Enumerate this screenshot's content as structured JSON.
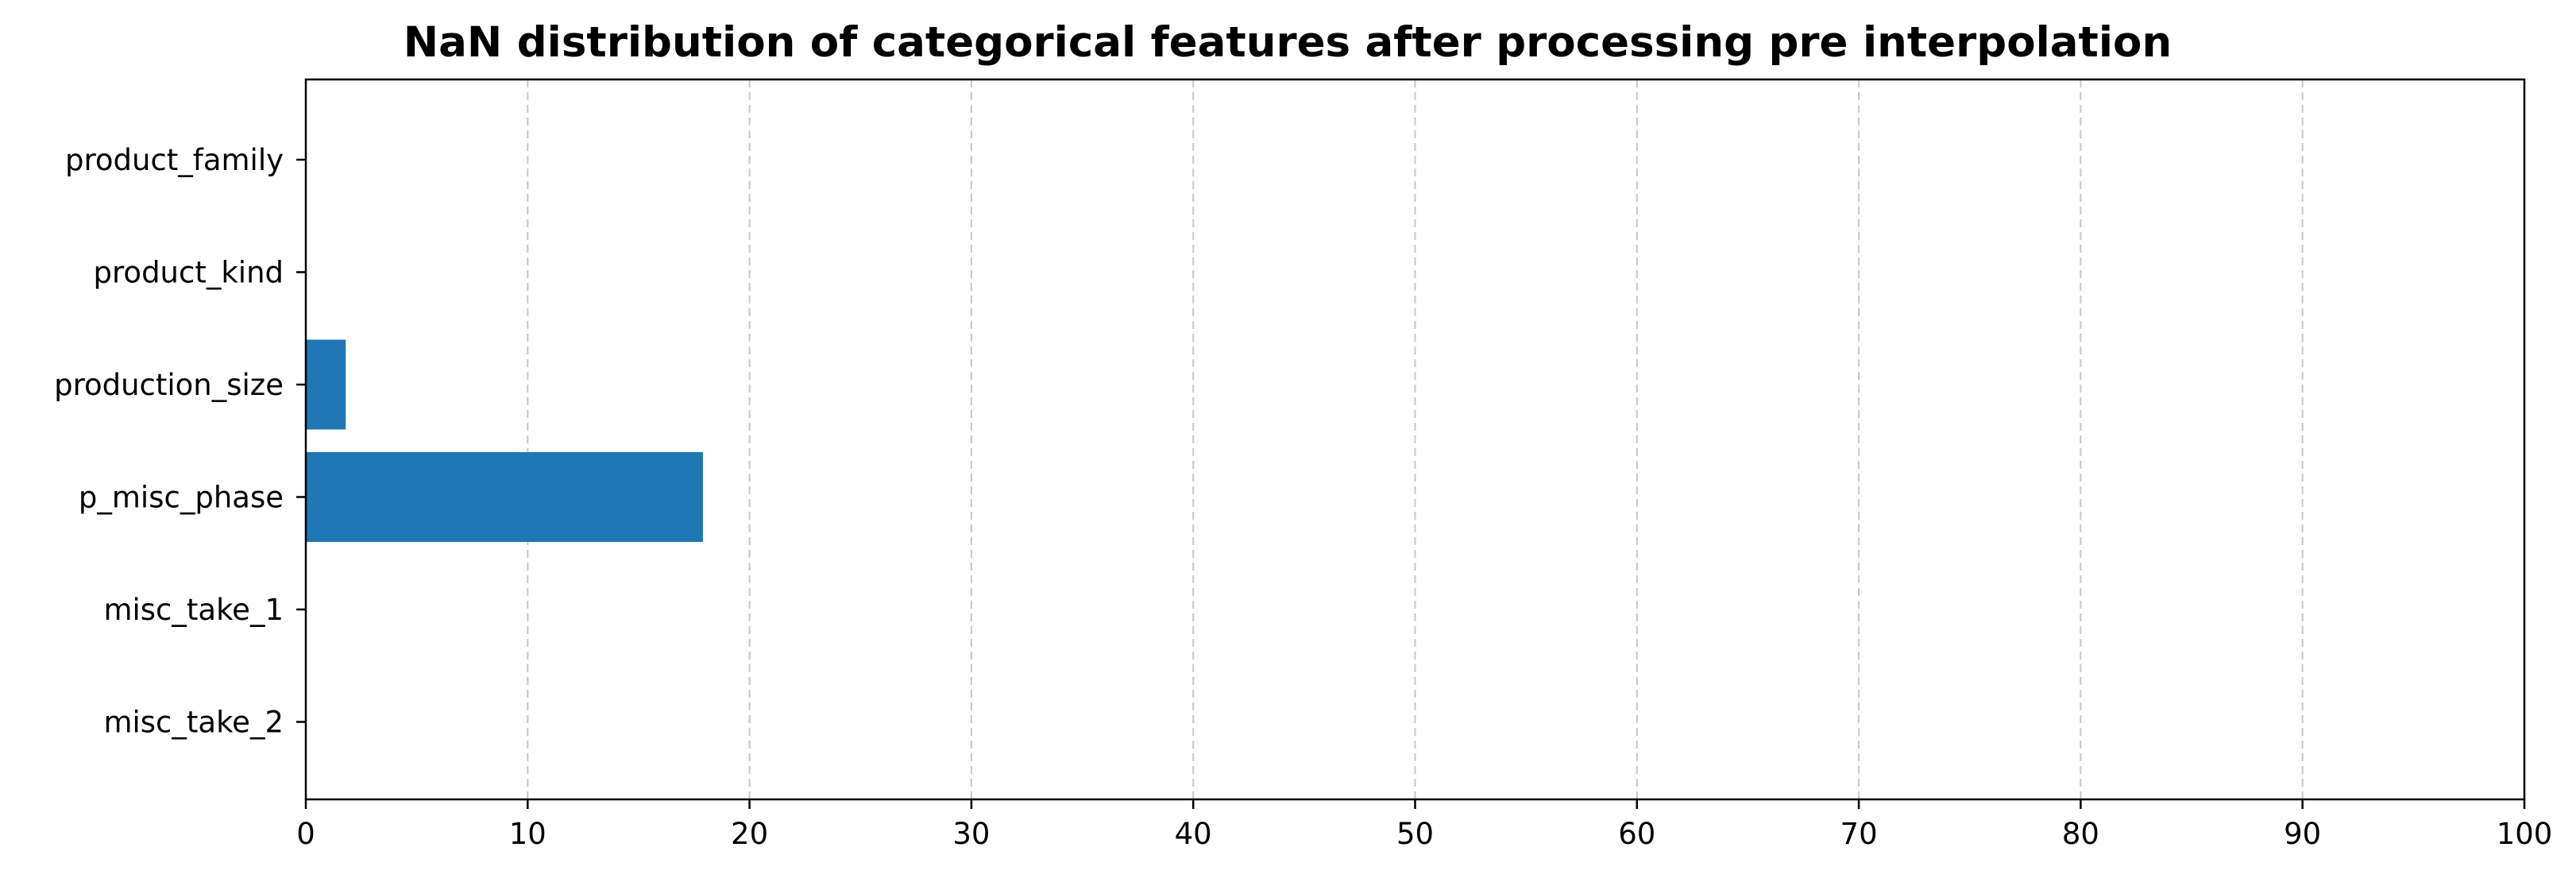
{
  "chart_data": {
    "type": "bar",
    "orientation": "horizontal",
    "title": "NaN distribution of categorical features after processing pre interpolation",
    "xlabel": "",
    "ylabel": "",
    "categories": [
      "product_family",
      "product_kind",
      "production_size",
      "p_misc_phase",
      "misc_take_1",
      "misc_take_2"
    ],
    "values": [
      0,
      0,
      1.8,
      17.9,
      0,
      0
    ],
    "xlim": [
      0,
      100
    ],
    "xticks": [
      0,
      10,
      20,
      30,
      40,
      50,
      60,
      70,
      80,
      90,
      100
    ],
    "grid": {
      "x": true,
      "y": false,
      "style": "dashed"
    },
    "bar_color": "#1f77b4"
  }
}
